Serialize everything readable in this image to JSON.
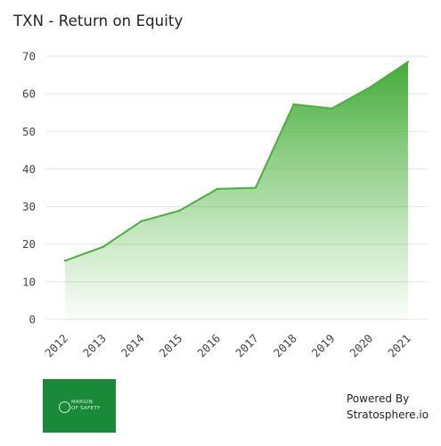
{
  "chart_data": {
    "type": "area",
    "title": "TXN - Return on Equity",
    "categories": [
      "2012",
      "2013",
      "2014",
      "2015",
      "2016",
      "2017",
      "2018",
      "2019",
      "2020",
      "2021"
    ],
    "values": [
      15.6,
      19.3,
      26.1,
      28.9,
      34.7,
      35.0,
      57.2,
      56.1,
      61.7,
      68.5
    ],
    "ylim": [
      0,
      70
    ],
    "yticks": [
      0,
      10,
      20,
      30,
      40,
      50,
      60,
      70
    ],
    "grid": true,
    "line_color": "#4caf3f",
    "fill_color": "#52b545"
  },
  "logo": {
    "line1": "MARGIN",
    "line2": "OF SAFETY",
    "color": "#1a8a3a"
  },
  "footer": {
    "line1": "Powered By",
    "line2": "Stratosphere.io"
  }
}
